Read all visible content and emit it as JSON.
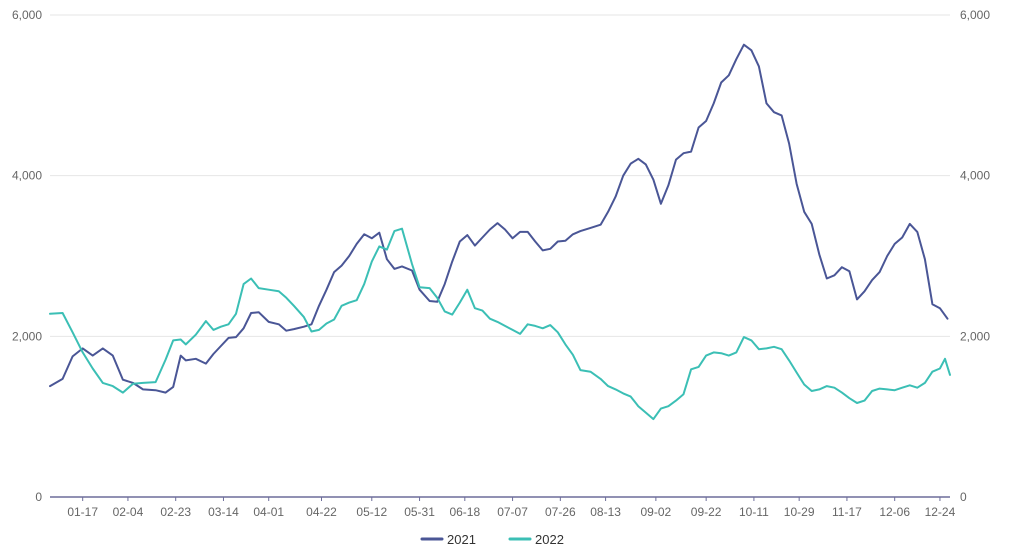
{
  "chart_data": {
    "type": "line",
    "title": "",
    "xlabel": "",
    "ylabel": "",
    "ylim": [
      0,
      6000
    ],
    "y_ticks": [
      0,
      2000,
      4000,
      6000
    ],
    "y_tick_labels": [
      "0",
      "2,000",
      "4,000",
      "6,000"
    ],
    "y_axes": [
      "left",
      "right"
    ],
    "x_tick_labels": [
      "01-17",
      "02-04",
      "02-23",
      "03-14",
      "04-01",
      "04-22",
      "05-12",
      "05-31",
      "06-18",
      "07-07",
      "07-26",
      "08-13",
      "09-02",
      "09-22",
      "10-11",
      "10-29",
      "11-17",
      "12-06",
      "12-24"
    ],
    "grid": "horizontal",
    "legend_position": "bottom-center",
    "series": [
      {
        "name": "2021",
        "color": "#4a5696",
        "points": [
          [
            "01-04",
            1380
          ],
          [
            "01-09",
            1470
          ],
          [
            "01-13",
            1750
          ],
          [
            "01-17",
            1850
          ],
          [
            "01-21",
            1760
          ],
          [
            "01-25",
            1850
          ],
          [
            "01-29",
            1760
          ],
          [
            "02-02",
            1460
          ],
          [
            "02-06",
            1420
          ],
          [
            "02-10",
            1340
          ],
          [
            "02-15",
            1330
          ],
          [
            "02-19",
            1300
          ],
          [
            "02-22",
            1370
          ],
          [
            "02-25",
            1760
          ],
          [
            "02-27",
            1700
          ],
          [
            "03-03",
            1720
          ],
          [
            "03-07",
            1660
          ],
          [
            "03-10",
            1780
          ],
          [
            "03-13",
            1880
          ],
          [
            "03-16",
            1980
          ],
          [
            "03-19",
            1990
          ],
          [
            "03-22",
            2100
          ],
          [
            "03-25",
            2290
          ],
          [
            "03-28",
            2300
          ],
          [
            "04-01",
            2180
          ],
          [
            "04-05",
            2150
          ],
          [
            "04-08",
            2070
          ],
          [
            "04-11",
            2090
          ],
          [
            "04-15",
            2120
          ],
          [
            "04-18",
            2150
          ],
          [
            "04-21",
            2380
          ],
          [
            "04-24",
            2580
          ],
          [
            "04-27",
            2800
          ],
          [
            "04-30",
            2880
          ],
          [
            "05-03",
            3000
          ],
          [
            "05-06",
            3150
          ],
          [
            "05-09",
            3270
          ],
          [
            "05-12",
            3220
          ],
          [
            "05-15",
            3290
          ],
          [
            "05-18",
            2960
          ],
          [
            "05-21",
            2840
          ],
          [
            "05-24",
            2870
          ],
          [
            "05-28",
            2820
          ],
          [
            "05-31",
            2580
          ],
          [
            "06-04",
            2440
          ],
          [
            "06-07",
            2430
          ],
          [
            "06-10",
            2650
          ],
          [
            "06-13",
            2930
          ],
          [
            "06-16",
            3180
          ],
          [
            "06-19",
            3260
          ],
          [
            "06-22",
            3130
          ],
          [
            "06-25",
            3230
          ],
          [
            "06-28",
            3330
          ],
          [
            "07-01",
            3410
          ],
          [
            "07-04",
            3330
          ],
          [
            "07-07",
            3220
          ],
          [
            "07-10",
            3300
          ],
          [
            "07-13",
            3300
          ],
          [
            "07-16",
            3180
          ],
          [
            "07-19",
            3070
          ],
          [
            "07-22",
            3090
          ],
          [
            "07-25",
            3180
          ],
          [
            "07-28",
            3190
          ],
          [
            "07-31",
            3270
          ],
          [
            "08-03",
            3310
          ],
          [
            "08-07",
            3350
          ],
          [
            "08-11",
            3390
          ],
          [
            "08-14",
            3550
          ],
          [
            "08-17",
            3740
          ],
          [
            "08-20",
            4000
          ],
          [
            "08-23",
            4150
          ],
          [
            "08-26",
            4210
          ],
          [
            "08-29",
            4140
          ],
          [
            "09-01",
            3950
          ],
          [
            "09-04",
            3650
          ],
          [
            "09-07",
            3880
          ],
          [
            "09-10",
            4200
          ],
          [
            "09-13",
            4280
          ],
          [
            "09-16",
            4300
          ],
          [
            "09-19",
            4600
          ],
          [
            "09-22",
            4680
          ],
          [
            "09-25",
            4900
          ],
          [
            "09-28",
            5160
          ],
          [
            "10-01",
            5250
          ],
          [
            "10-04",
            5450
          ],
          [
            "10-07",
            5630
          ],
          [
            "10-10",
            5560
          ],
          [
            "10-13",
            5360
          ],
          [
            "10-16",
            4900
          ],
          [
            "10-19",
            4790
          ],
          [
            "10-22",
            4750
          ],
          [
            "10-25",
            4400
          ],
          [
            "10-28",
            3900
          ],
          [
            "10-31",
            3550
          ],
          [
            "11-03",
            3400
          ],
          [
            "11-06",
            3020
          ],
          [
            "11-09",
            2720
          ],
          [
            "11-12",
            2760
          ],
          [
            "11-15",
            2860
          ],
          [
            "11-18",
            2810
          ],
          [
            "11-21",
            2460
          ],
          [
            "11-24",
            2560
          ],
          [
            "11-27",
            2700
          ],
          [
            "11-30",
            2800
          ],
          [
            "12-03",
            3000
          ],
          [
            "12-06",
            3150
          ],
          [
            "12-09",
            3230
          ],
          [
            "12-12",
            3400
          ],
          [
            "12-15",
            3300
          ],
          [
            "12-18",
            2960
          ],
          [
            "12-21",
            2400
          ],
          [
            "12-24",
            2350
          ],
          [
            "12-27",
            2220
          ]
        ]
      },
      {
        "name": "2022",
        "color": "#3bbfb5",
        "points": [
          [
            "01-04",
            2280
          ],
          [
            "01-09",
            2290
          ],
          [
            "01-13",
            2050
          ],
          [
            "01-17",
            1800
          ],
          [
            "01-21",
            1600
          ],
          [
            "01-25",
            1420
          ],
          [
            "01-29",
            1380
          ],
          [
            "02-02",
            1300
          ],
          [
            "02-06",
            1410
          ],
          [
            "02-10",
            1420
          ],
          [
            "02-15",
            1430
          ],
          [
            "02-19",
            1710
          ],
          [
            "02-22",
            1950
          ],
          [
            "02-25",
            1960
          ],
          [
            "02-27",
            1900
          ],
          [
            "03-03",
            2020
          ],
          [
            "03-07",
            2190
          ],
          [
            "03-10",
            2080
          ],
          [
            "03-13",
            2120
          ],
          [
            "03-16",
            2150
          ],
          [
            "03-19",
            2280
          ],
          [
            "03-22",
            2650
          ],
          [
            "03-25",
            2720
          ],
          [
            "03-28",
            2600
          ],
          [
            "04-01",
            2580
          ],
          [
            "04-05",
            2560
          ],
          [
            "04-08",
            2480
          ],
          [
            "04-11",
            2380
          ],
          [
            "04-15",
            2240
          ],
          [
            "04-18",
            2060
          ],
          [
            "04-21",
            2080
          ],
          [
            "04-24",
            2160
          ],
          [
            "04-27",
            2210
          ],
          [
            "04-30",
            2380
          ],
          [
            "05-03",
            2420
          ],
          [
            "05-06",
            2450
          ],
          [
            "05-09",
            2650
          ],
          [
            "05-12",
            2930
          ],
          [
            "05-15",
            3120
          ],
          [
            "05-18",
            3080
          ],
          [
            "05-21",
            3310
          ],
          [
            "05-24",
            3340
          ],
          [
            "05-28",
            2900
          ],
          [
            "05-31",
            2610
          ],
          [
            "06-04",
            2600
          ],
          [
            "06-07",
            2480
          ],
          [
            "06-10",
            2310
          ],
          [
            "06-13",
            2270
          ],
          [
            "06-16",
            2420
          ],
          [
            "06-19",
            2580
          ],
          [
            "06-22",
            2350
          ],
          [
            "06-25",
            2320
          ],
          [
            "06-28",
            2220
          ],
          [
            "07-01",
            2180
          ],
          [
            "07-04",
            2130
          ],
          [
            "07-07",
            2080
          ],
          [
            "07-10",
            2030
          ],
          [
            "07-13",
            2150
          ],
          [
            "07-16",
            2130
          ],
          [
            "07-19",
            2100
          ],
          [
            "07-22",
            2140
          ],
          [
            "07-25",
            2050
          ],
          [
            "07-28",
            1900
          ],
          [
            "07-31",
            1770
          ],
          [
            "08-03",
            1580
          ],
          [
            "08-07",
            1560
          ],
          [
            "08-11",
            1470
          ],
          [
            "08-14",
            1380
          ],
          [
            "08-17",
            1340
          ],
          [
            "08-20",
            1290
          ],
          [
            "08-23",
            1250
          ],
          [
            "08-26",
            1130
          ],
          [
            "08-29",
            1050
          ],
          [
            "09-01",
            970
          ],
          [
            "09-04",
            1100
          ],
          [
            "09-07",
            1130
          ],
          [
            "09-10",
            1200
          ],
          [
            "09-13",
            1280
          ],
          [
            "09-16",
            1590
          ],
          [
            "09-19",
            1620
          ],
          [
            "09-22",
            1760
          ],
          [
            "09-25",
            1800
          ],
          [
            "09-28",
            1790
          ],
          [
            "10-01",
            1760
          ],
          [
            "10-04",
            1800
          ],
          [
            "10-07",
            1990
          ],
          [
            "10-10",
            1950
          ],
          [
            "10-13",
            1840
          ],
          [
            "10-16",
            1850
          ],
          [
            "10-19",
            1870
          ],
          [
            "10-22",
            1840
          ],
          [
            "10-25",
            1700
          ],
          [
            "10-28",
            1550
          ],
          [
            "10-31",
            1400
          ],
          [
            "11-03",
            1320
          ],
          [
            "11-06",
            1340
          ],
          [
            "11-09",
            1380
          ],
          [
            "11-12",
            1360
          ],
          [
            "11-15",
            1300
          ],
          [
            "11-18",
            1230
          ],
          [
            "11-21",
            1170
          ],
          [
            "11-24",
            1200
          ],
          [
            "11-27",
            1320
          ],
          [
            "11-30",
            1350
          ],
          [
            "12-03",
            1340
          ],
          [
            "12-06",
            1330
          ],
          [
            "12-09",
            1360
          ],
          [
            "12-12",
            1390
          ],
          [
            "12-15",
            1360
          ],
          [
            "12-18",
            1420
          ],
          [
            "12-21",
            1560
          ],
          [
            "12-24",
            1600
          ],
          [
            "12-26",
            1720
          ],
          [
            "12-28",
            1520
          ]
        ]
      }
    ]
  }
}
